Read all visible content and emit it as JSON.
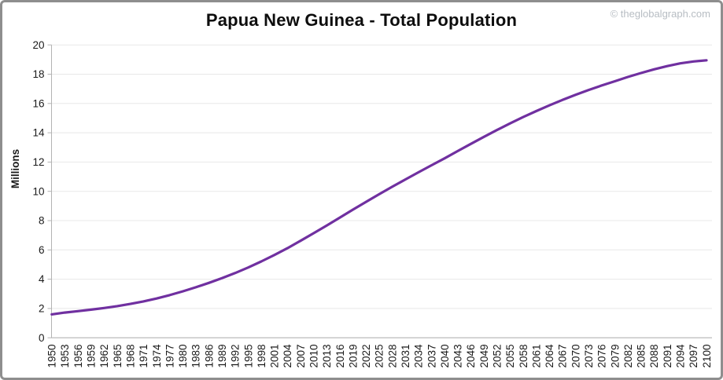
{
  "header": {
    "title": "Papua New Guinea - Total Population",
    "watermark": "© theglobalgraph.com"
  },
  "colors": {
    "line": "#7030a0",
    "grid": "#e8e8e8",
    "axis": "#b3b3b3",
    "tick_text": "#1a1a1a",
    "title_text": "#0d0d0d",
    "watermark_text": "#b7bdc3",
    "frame_border": "#8e8e8e"
  },
  "chart_data": {
    "type": "line",
    "title": "Papua New Guinea - Total Population",
    "xlabel": "",
    "ylabel": "Millions",
    "ylim": [
      0,
      20
    ],
    "yticks": [
      0,
      2,
      4,
      6,
      8,
      10,
      12,
      14,
      16,
      18,
      20
    ],
    "grid": true,
    "legend": false,
    "line_color": "#7030a0",
    "categories": [
      1950,
      1953,
      1956,
      1959,
      1962,
      1965,
      1968,
      1971,
      1974,
      1977,
      1980,
      1983,
      1986,
      1989,
      1992,
      1995,
      1998,
      2001,
      2004,
      2007,
      2010,
      2013,
      2016,
      2019,
      2022,
      2025,
      2028,
      2031,
      2034,
      2037,
      2040,
      2043,
      2046,
      2049,
      2052,
      2055,
      2058,
      2061,
      2064,
      2067,
      2070,
      2073,
      2076,
      2079,
      2082,
      2085,
      2088,
      2091,
      2094,
      2097,
      2100
    ],
    "values": [
      1.6,
      1.72,
      1.82,
      1.92,
      2.03,
      2.16,
      2.31,
      2.48,
      2.68,
      2.91,
      3.17,
      3.45,
      3.75,
      4.07,
      4.42,
      4.8,
      5.21,
      5.65,
      6.12,
      6.62,
      7.14,
      7.67,
      8.21,
      8.75,
      9.28,
      9.8,
      10.31,
      10.81,
      11.3,
      11.78,
      12.25,
      12.75,
      13.24,
      13.72,
      14.19,
      14.64,
      15.07,
      15.48,
      15.87,
      16.24,
      16.59,
      16.92,
      17.23,
      17.52,
      17.81,
      18.08,
      18.33,
      18.55,
      18.74,
      18.87,
      18.95
    ]
  }
}
